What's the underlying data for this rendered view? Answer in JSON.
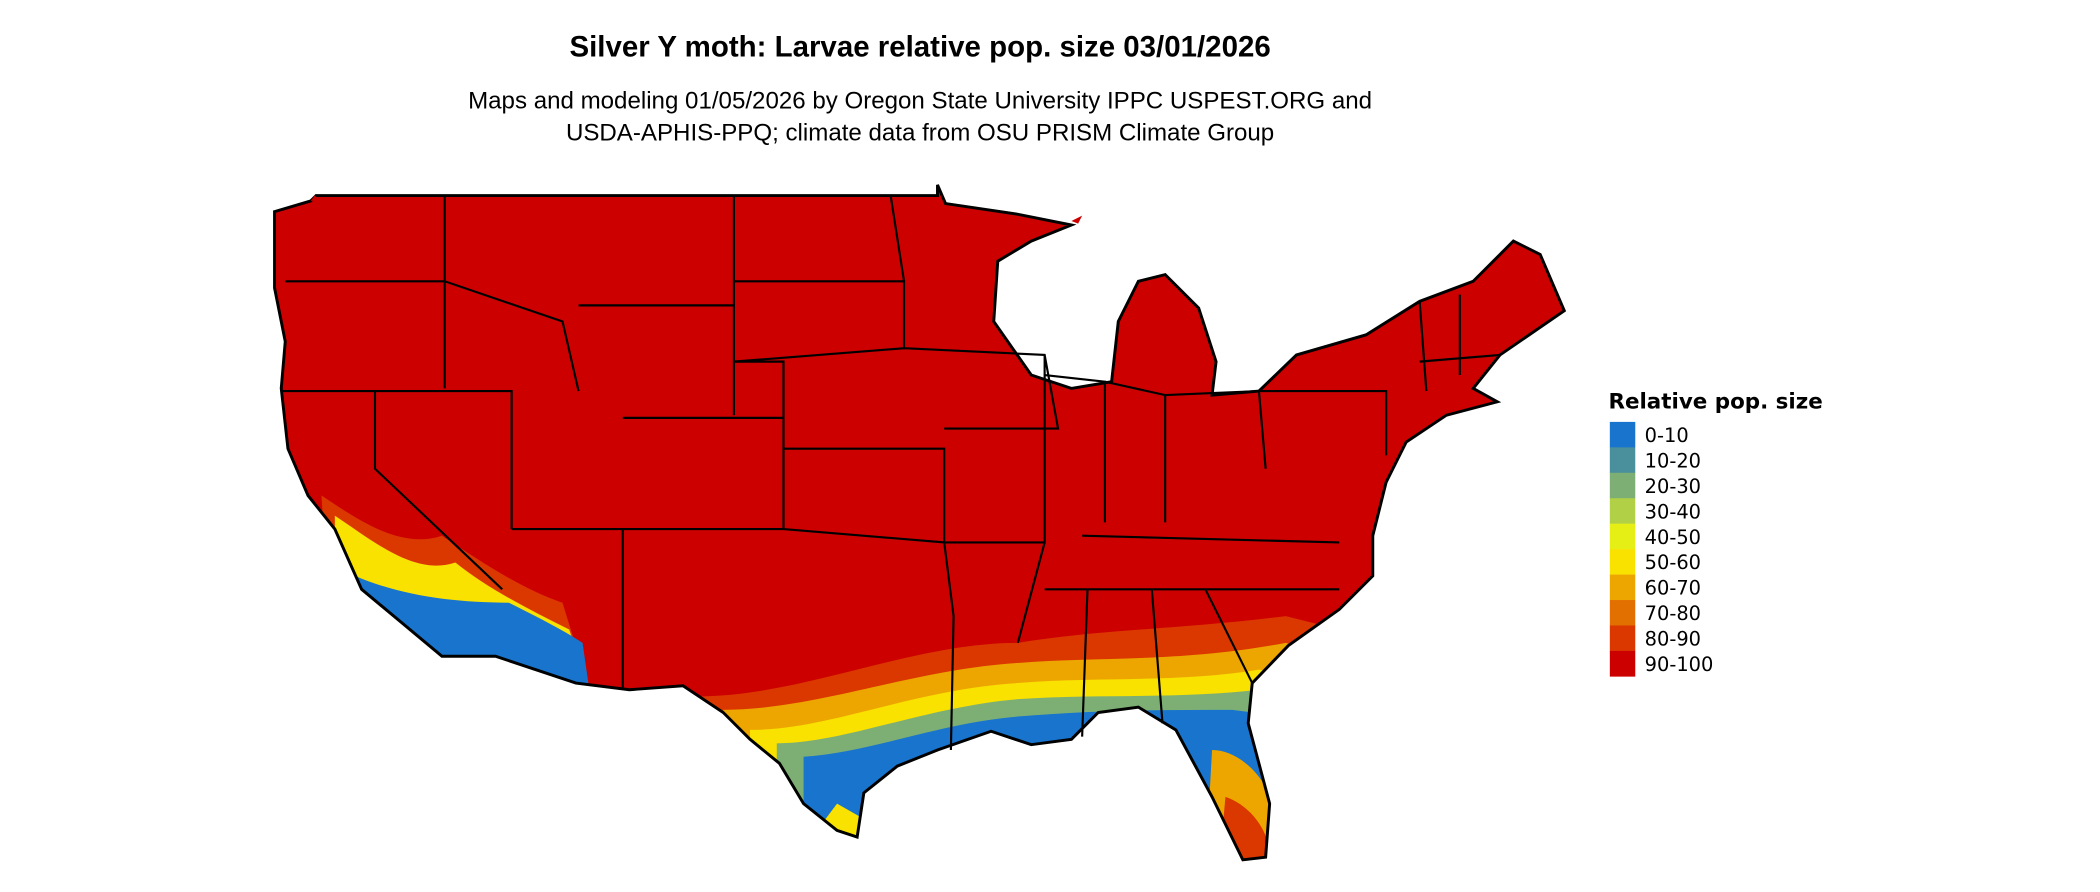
{
  "title": "Silver Y moth: Larvae relative pop. size 03/01/2026",
  "subtitle_line1": "Maps and modeling 01/05/2026 by Oregon State University IPPC USPEST.ORG and",
  "subtitle_line2": "USDA-APHIS-PPQ; climate data from OSU PRISM Climate Group",
  "legend": {
    "title": "Relative pop. size",
    "items": [
      {
        "label": "0-10",
        "color": "#1874CD"
      },
      {
        "label": "10-20",
        "color": "#4A8F9C"
      },
      {
        "label": "20-30",
        "color": "#7DAF74"
      },
      {
        "label": "30-40",
        "color": "#B2D045"
      },
      {
        "label": "40-50",
        "color": "#E5EF15"
      },
      {
        "label": "50-60",
        "color": "#F9E100"
      },
      {
        "label": "60-70",
        "color": "#EDA600"
      },
      {
        "label": "70-80",
        "color": "#E27000"
      },
      {
        "label": "80-90",
        "color": "#DB3800"
      },
      {
        "label": "90-100",
        "color": "#CD0000"
      }
    ]
  },
  "map": {
    "region": "Contiguous United States",
    "dominant_class": "90-100",
    "low_value_regions": [
      "Southern California / Arizona desert",
      "Texas Gulf coast",
      "Louisiana coast",
      "Florida panhandle and peninsula"
    ]
  }
}
